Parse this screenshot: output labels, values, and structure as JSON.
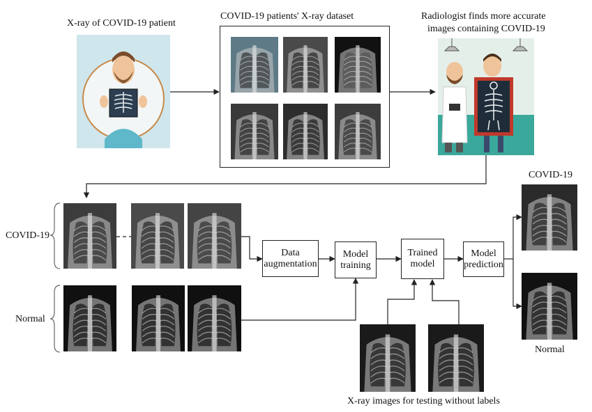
{
  "top": {
    "patient_label": "X-ray of COVID-19 patient",
    "dataset_label": "COVID-19 patients' X-ray dataset",
    "radiologist_label_line1": "Radiologist finds more accurate",
    "radiologist_label_line2": "images containing COVID-19"
  },
  "classes": {
    "covid": "COVID-19",
    "normal": "Normal"
  },
  "pipeline": {
    "data_augmentation_line1": "Data",
    "data_augmentation_line2": "augmentation",
    "model_training_line1": "Model",
    "model_training_line2": "training",
    "trained_model_line1": "Trained",
    "trained_model_line2": "model",
    "model_prediction_line1": "Model",
    "model_prediction_line2": "prediction"
  },
  "testing_label": "X-ray images for testing without labels",
  "outputs": {
    "covid": "COVID-19",
    "normal": "Normal"
  }
}
